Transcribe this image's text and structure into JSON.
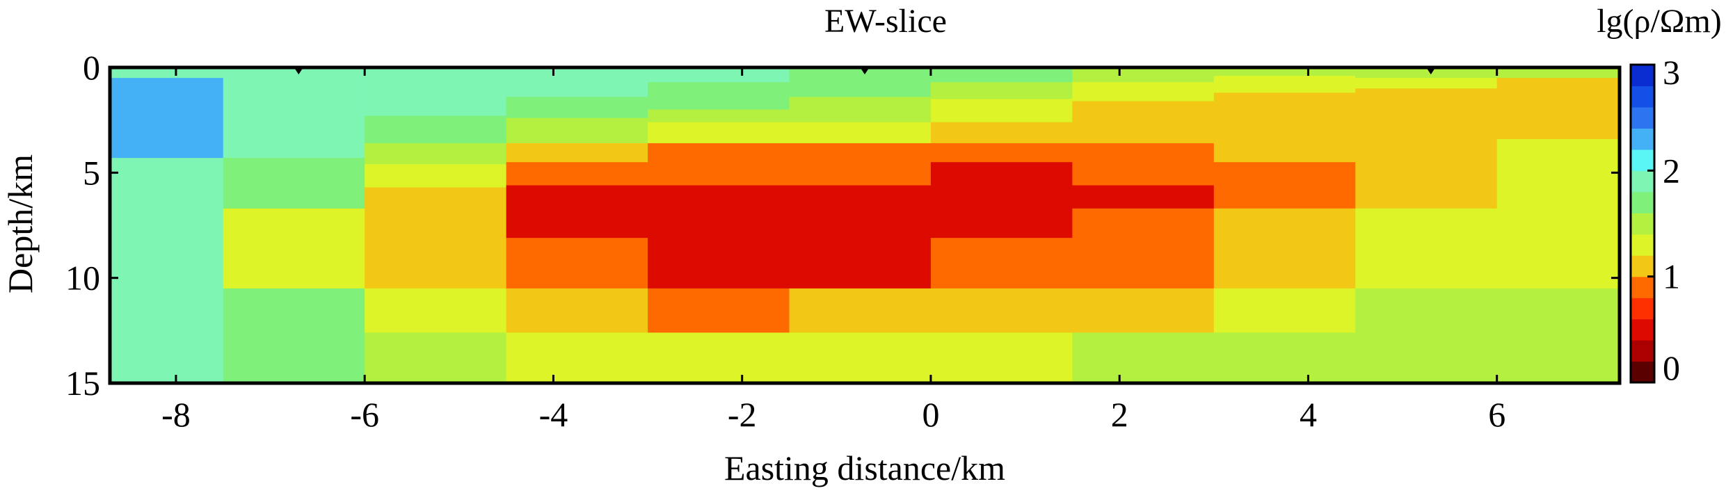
{
  "chart_data": {
    "type": "heatmap",
    "title": "EW-slice",
    "xlabel": "Easting distance/km",
    "ylabel": "Depth/km",
    "colorbar_label": "lg(ρ/Ωm)",
    "xlim": [
      -8.7,
      7.3
    ],
    "ylim": [
      0,
      15
    ],
    "y_inverted": true,
    "x_ticks": [
      "-8",
      "-6",
      "-4",
      "-2",
      "0",
      "2",
      "4",
      "6"
    ],
    "y_ticks": [
      "0",
      "5",
      "10",
      "15"
    ],
    "colorbar_ticks": [
      "0",
      "1",
      "2",
      "3"
    ],
    "colorbar_range": [
      0,
      3
    ],
    "colorbar_colors": [
      "#5a0000",
      "#aa0000",
      "#dd0a00",
      "#ff3000",
      "#ff6a00",
      "#f2c716",
      "#dcf428",
      "#b4f040",
      "#7ff079",
      "#7ff5b4",
      "#5af5f5",
      "#44b0f5",
      "#2d74f0",
      "#1450e6",
      "#0a2dd2"
    ],
    "station_markers_x": [
      -6.7,
      -0.7,
      5.3
    ],
    "cells": [
      {
        "x": [
          -8.7,
          -7.5
        ],
        "y": [
          0,
          0.5
        ],
        "value": 1.9
      },
      {
        "x": [
          -8.7,
          -7.5
        ],
        "y": [
          0.5,
          4.3
        ],
        "value": 2.3
      },
      {
        "x": [
          -8.7,
          -7.5
        ],
        "y": [
          4.3,
          15
        ],
        "value": 1.9
      },
      {
        "x": [
          -7.5,
          -6.0
        ],
        "y": [
          0,
          4.3
        ],
        "value": 1.9
      },
      {
        "x": [
          -7.5,
          -6.0
        ],
        "y": [
          4.3,
          6.7
        ],
        "value": 1.7
      },
      {
        "x": [
          -7.5,
          -6.0
        ],
        "y": [
          6.7,
          10.5
        ],
        "value": 1.35
      },
      {
        "x": [
          -7.5,
          -6.0
        ],
        "y": [
          10.5,
          15
        ],
        "value": 1.7
      },
      {
        "x": [
          -6.0,
          -4.5
        ],
        "y": [
          0,
          2.3
        ],
        "value": 1.9
      },
      {
        "x": [
          -6.0,
          -4.5
        ],
        "y": [
          2.3,
          3.6
        ],
        "value": 1.7
      },
      {
        "x": [
          -6.0,
          -4.5
        ],
        "y": [
          3.6,
          4.6
        ],
        "value": 1.5
      },
      {
        "x": [
          -6.0,
          -4.5
        ],
        "y": [
          4.6,
          5.7
        ],
        "value": 1.3
      },
      {
        "x": [
          -6.0,
          -4.5
        ],
        "y": [
          5.7,
          10.5
        ],
        "value": 1.05
      },
      {
        "x": [
          -6.0,
          -4.5
        ],
        "y": [
          10.5,
          12.6
        ],
        "value": 1.3
      },
      {
        "x": [
          -6.0,
          -4.5
        ],
        "y": [
          12.6,
          15
        ],
        "value": 1.5
      },
      {
        "x": [
          -4.5,
          -3.0
        ],
        "y": [
          0,
          1.4
        ],
        "value": 1.9
      },
      {
        "x": [
          -4.5,
          -3.0
        ],
        "y": [
          1.4,
          2.4
        ],
        "value": 1.7
      },
      {
        "x": [
          -4.5,
          -3.0
        ],
        "y": [
          2.4,
          3.6
        ],
        "value": 1.5
      },
      {
        "x": [
          -4.5,
          -3.0
        ],
        "y": [
          3.6,
          4.5
        ],
        "value": 1.05
      },
      {
        "x": [
          -4.5,
          -3.0
        ],
        "y": [
          4.5,
          5.6
        ],
        "value": 0.85
      },
      {
        "x": [
          -4.5,
          -3.0
        ],
        "y": [
          5.6,
          8.1
        ],
        "value": 0.6
      },
      {
        "x": [
          -4.5,
          -3.0
        ],
        "y": [
          8.1,
          10.5
        ],
        "value": 0.85
      },
      {
        "x": [
          -4.5,
          -3.0
        ],
        "y": [
          10.5,
          12.6
        ],
        "value": 1.05
      },
      {
        "x": [
          -4.5,
          -3.0
        ],
        "y": [
          12.6,
          15
        ],
        "value": 1.3
      },
      {
        "x": [
          -3.0,
          -1.5
        ],
        "y": [
          0,
          0.7
        ],
        "value": 1.9
      },
      {
        "x": [
          -3.0,
          -1.5
        ],
        "y": [
          0.7,
          2.0
        ],
        "value": 1.7
      },
      {
        "x": [
          -3.0,
          -1.5
        ],
        "y": [
          2.0,
          2.6
        ],
        "value": 1.5
      },
      {
        "x": [
          -3.0,
          -1.5
        ],
        "y": [
          2.6,
          3.6
        ],
        "value": 1.3
      },
      {
        "x": [
          -3.0,
          -1.5
        ],
        "y": [
          3.6,
          5.6
        ],
        "value": 0.85
      },
      {
        "x": [
          -3.0,
          -1.5
        ],
        "y": [
          5.6,
          8.1
        ],
        "value": 0.45
      },
      {
        "x": [
          -3.0,
          -1.5
        ],
        "y": [
          8.1,
          10.5
        ],
        "value": 0.6
      },
      {
        "x": [
          -3.0,
          -1.5
        ],
        "y": [
          10.5,
          12.6
        ],
        "value": 0.85
      },
      {
        "x": [
          -3.0,
          -1.5
        ],
        "y": [
          12.6,
          15
        ],
        "value": 1.3
      },
      {
        "x": [
          -1.5,
          0.0
        ],
        "y": [
          0,
          1.4
        ],
        "value": 1.7
      },
      {
        "x": [
          -1.5,
          0.0
        ],
        "y": [
          1.4,
          2.6
        ],
        "value": 1.5
      },
      {
        "x": [
          -1.5,
          0.0
        ],
        "y": [
          2.6,
          3.6
        ],
        "value": 1.3
      },
      {
        "x": [
          -1.5,
          0.0
        ],
        "y": [
          3.6,
          5.6
        ],
        "value": 0.85
      },
      {
        "x": [
          -1.5,
          0.0
        ],
        "y": [
          5.6,
          8.1
        ],
        "value": 0.45
      },
      {
        "x": [
          -1.5,
          0.0
        ],
        "y": [
          8.1,
          10.5
        ],
        "value": 0.6
      },
      {
        "x": [
          -1.5,
          0.0
        ],
        "y": [
          10.5,
          12.6
        ],
        "value": 1.05
      },
      {
        "x": [
          -1.5,
          0.0
        ],
        "y": [
          12.6,
          15
        ],
        "value": 1.3
      },
      {
        "x": [
          0.0,
          1.5
        ],
        "y": [
          0,
          0.7
        ],
        "value": 1.7
      },
      {
        "x": [
          0.0,
          1.5
        ],
        "y": [
          0.7,
          1.5
        ],
        "value": 1.5
      },
      {
        "x": [
          0.0,
          1.5
        ],
        "y": [
          1.5,
          2.6
        ],
        "value": 1.3
      },
      {
        "x": [
          0.0,
          1.5
        ],
        "y": [
          2.6,
          3.6
        ],
        "value": 1.05
      },
      {
        "x": [
          0.0,
          1.5
        ],
        "y": [
          3.6,
          4.5
        ],
        "value": 0.85
      },
      {
        "x": [
          0.0,
          1.5
        ],
        "y": [
          4.5,
          8.1
        ],
        "value": 0.6
      },
      {
        "x": [
          0.0,
          1.5
        ],
        "y": [
          8.1,
          10.5
        ],
        "value": 0.85
      },
      {
        "x": [
          0.0,
          1.5
        ],
        "y": [
          10.5,
          12.6
        ],
        "value": 1.05
      },
      {
        "x": [
          0.0,
          1.5
        ],
        "y": [
          12.6,
          15
        ],
        "value": 1.3
      },
      {
        "x": [
          1.5,
          3.0
        ],
        "y": [
          0,
          0.7
        ],
        "value": 1.5
      },
      {
        "x": [
          1.5,
          3.0
        ],
        "y": [
          0.7,
          1.6
        ],
        "value": 1.3
      },
      {
        "x": [
          1.5,
          3.0
        ],
        "y": [
          1.6,
          3.6
        ],
        "value": 1.05
      },
      {
        "x": [
          1.5,
          3.0
        ],
        "y": [
          3.6,
          5.6
        ],
        "value": 0.85
      },
      {
        "x": [
          1.5,
          3.0
        ],
        "y": [
          5.6,
          6.7
        ],
        "value": 0.6
      },
      {
        "x": [
          1.5,
          3.0
        ],
        "y": [
          6.7,
          10.5
        ],
        "value": 0.85
      },
      {
        "x": [
          1.5,
          3.0
        ],
        "y": [
          10.5,
          12.6
        ],
        "value": 1.05
      },
      {
        "x": [
          1.5,
          3.0
        ],
        "y": [
          12.6,
          15
        ],
        "value": 1.5
      },
      {
        "x": [
          3.0,
          4.5
        ],
        "y": [
          0,
          0.4
        ],
        "value": 1.5
      },
      {
        "x": [
          3.0,
          4.5
        ],
        "y": [
          0.4,
          1.2
        ],
        "value": 1.3
      },
      {
        "x": [
          3.0,
          4.5
        ],
        "y": [
          1.2,
          4.5
        ],
        "value": 1.05
      },
      {
        "x": [
          3.0,
          4.5
        ],
        "y": [
          4.5,
          6.7
        ],
        "value": 0.85
      },
      {
        "x": [
          3.0,
          4.5
        ],
        "y": [
          6.7,
          10.5
        ],
        "value": 1.05
      },
      {
        "x": [
          3.0,
          4.5
        ],
        "y": [
          10.5,
          12.6
        ],
        "value": 1.3
      },
      {
        "x": [
          3.0,
          4.5
        ],
        "y": [
          12.6,
          15
        ],
        "value": 1.5
      },
      {
        "x": [
          4.5,
          6.0
        ],
        "y": [
          0,
          0.5
        ],
        "value": 1.5
      },
      {
        "x": [
          4.5,
          6.0
        ],
        "y": [
          0.5,
          1.0
        ],
        "value": 1.3
      },
      {
        "x": [
          4.5,
          6.0
        ],
        "y": [
          1.0,
          6.7
        ],
        "value": 1.05
      },
      {
        "x": [
          4.5,
          6.0
        ],
        "y": [
          6.7,
          10.5
        ],
        "value": 1.3
      },
      {
        "x": [
          4.5,
          6.0
        ],
        "y": [
          10.5,
          15
        ],
        "value": 1.5
      },
      {
        "x": [
          6.0,
          7.3
        ],
        "y": [
          0,
          0.5
        ],
        "value": 1.5
      },
      {
        "x": [
          6.0,
          7.3
        ],
        "y": [
          0.5,
          3.4
        ],
        "value": 1.05
      },
      {
        "x": [
          6.0,
          7.3
        ],
        "y": [
          3.4,
          10.5
        ],
        "value": 1.3
      },
      {
        "x": [
          6.0,
          7.3
        ],
        "y": [
          10.5,
          15
        ],
        "value": 1.5
      }
    ]
  }
}
